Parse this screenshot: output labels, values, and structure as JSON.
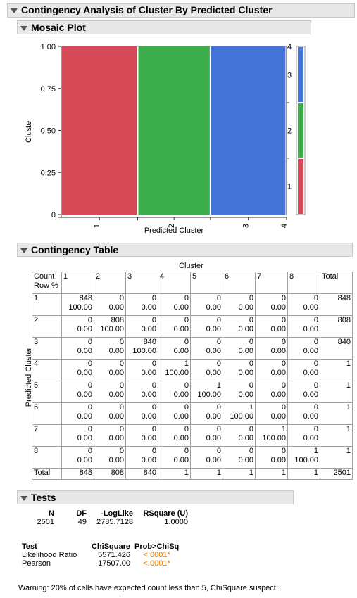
{
  "report": {
    "title": "Contingency Analysis of Cluster By Predicted Cluster"
  },
  "mosaic": {
    "title": "Mosaic Plot",
    "y_axis_label": "Cluster",
    "x_axis_label": "Predicted Cluster",
    "y_ticks": [
      "1.00",
      "0.75",
      "0.50",
      "0.25",
      "0"
    ],
    "x_ticks": [
      "1",
      "2",
      "3",
      "4"
    ],
    "right_ticks": [
      "4",
      "3",
      "2",
      "1"
    ],
    "colors": {
      "c1": "#d64a57",
      "c2": "#3cad4b",
      "c3": "#4573d8"
    }
  },
  "chart_data": {
    "type": "mosaic",
    "xlabel": "Predicted Cluster",
    "ylabel": "Cluster",
    "ylim": [
      0,
      1
    ],
    "categories": [
      "1",
      "2",
      "3",
      "4",
      "5",
      "6",
      "7",
      "8"
    ],
    "column_shares": [
      0.339,
      0.323,
      0.336,
      0.0004,
      0.0004,
      0.0004,
      0.0004,
      0.0004
    ],
    "series": [
      {
        "name": "1",
        "values": [
          1,
          0,
          0,
          0,
          0,
          0,
          0,
          0
        ]
      },
      {
        "name": "2",
        "values": [
          0,
          1,
          0,
          0,
          0,
          0,
          0,
          0
        ]
      },
      {
        "name": "3",
        "values": [
          0,
          0,
          1,
          0,
          0,
          0,
          0,
          0
        ]
      }
    ]
  },
  "contingency": {
    "title": "Contingency Table",
    "col_axis_label": "Cluster",
    "row_axis_label": "Predicted Cluster",
    "legend_line1": "Count",
    "legend_line2": "Row %",
    "columns": [
      "1",
      "2",
      "3",
      "4",
      "5",
      "6",
      "7",
      "8"
    ],
    "total_label": "Total",
    "rows": [
      {
        "label": "1",
        "counts": [
          "848",
          "0",
          "0",
          "0",
          "0",
          "0",
          "0",
          "0"
        ],
        "pct": [
          "100.00",
          "0.00",
          "0.00",
          "0.00",
          "0.00",
          "0.00",
          "0.00",
          "0.00"
        ],
        "total": "848"
      },
      {
        "label": "2",
        "counts": [
          "0",
          "808",
          "0",
          "0",
          "0",
          "0",
          "0",
          "0"
        ],
        "pct": [
          "0.00",
          "100.00",
          "0.00",
          "0.00",
          "0.00",
          "0.00",
          "0.00",
          "0.00"
        ],
        "total": "808"
      },
      {
        "label": "3",
        "counts": [
          "0",
          "0",
          "840",
          "0",
          "0",
          "0",
          "0",
          "0"
        ],
        "pct": [
          "0.00",
          "0.00",
          "100.00",
          "0.00",
          "0.00",
          "0.00",
          "0.00",
          "0.00"
        ],
        "total": "840"
      },
      {
        "label": "4",
        "counts": [
          "0",
          "0",
          "0",
          "1",
          "0",
          "0",
          "0",
          "0"
        ],
        "pct": [
          "0.00",
          "0.00",
          "0.00",
          "100.00",
          "0.00",
          "0.00",
          "0.00",
          "0.00"
        ],
        "total": "1"
      },
      {
        "label": "5",
        "counts": [
          "0",
          "0",
          "0",
          "0",
          "1",
          "0",
          "0",
          "0"
        ],
        "pct": [
          "0.00",
          "0.00",
          "0.00",
          "0.00",
          "100.00",
          "0.00",
          "0.00",
          "0.00"
        ],
        "total": "1"
      },
      {
        "label": "6",
        "counts": [
          "0",
          "0",
          "0",
          "0",
          "0",
          "1",
          "0",
          "0"
        ],
        "pct": [
          "0.00",
          "0.00",
          "0.00",
          "0.00",
          "0.00",
          "100.00",
          "0.00",
          "0.00"
        ],
        "total": "1"
      },
      {
        "label": "7",
        "counts": [
          "0",
          "0",
          "0",
          "0",
          "0",
          "0",
          "1",
          "0"
        ],
        "pct": [
          "0.00",
          "0.00",
          "0.00",
          "0.00",
          "0.00",
          "0.00",
          "100.00",
          "0.00"
        ],
        "total": "1"
      },
      {
        "label": "8",
        "counts": [
          "0",
          "0",
          "0",
          "0",
          "0",
          "0",
          "0",
          "1"
        ],
        "pct": [
          "0.00",
          "0.00",
          "0.00",
          "0.00",
          "0.00",
          "0.00",
          "0.00",
          "100.00"
        ],
        "total": "1"
      }
    ],
    "totals": [
      "848",
      "808",
      "840",
      "1",
      "1",
      "1",
      "1",
      "1"
    ],
    "grand_total": "2501"
  },
  "tests": {
    "title": "Tests",
    "summary_headers": [
      "N",
      "DF",
      "-LogLike",
      "RSquare (U)"
    ],
    "summary_values": [
      "2501",
      "49",
      "2785.7128",
      "1.0000"
    ],
    "test_headers": [
      "Test",
      "ChiSquare",
      "Prob>ChiSq"
    ],
    "test_rows": [
      {
        "name": "Likelihood Ratio",
        "chisq": "5571.426",
        "prob": "<.0001*"
      },
      {
        "name": "Pearson",
        "chisq": "17507.00",
        "prob": "<.0001*"
      }
    ],
    "warning": "Warning: 20% of cells have expected count less than 5, ChiSquare suspect."
  }
}
